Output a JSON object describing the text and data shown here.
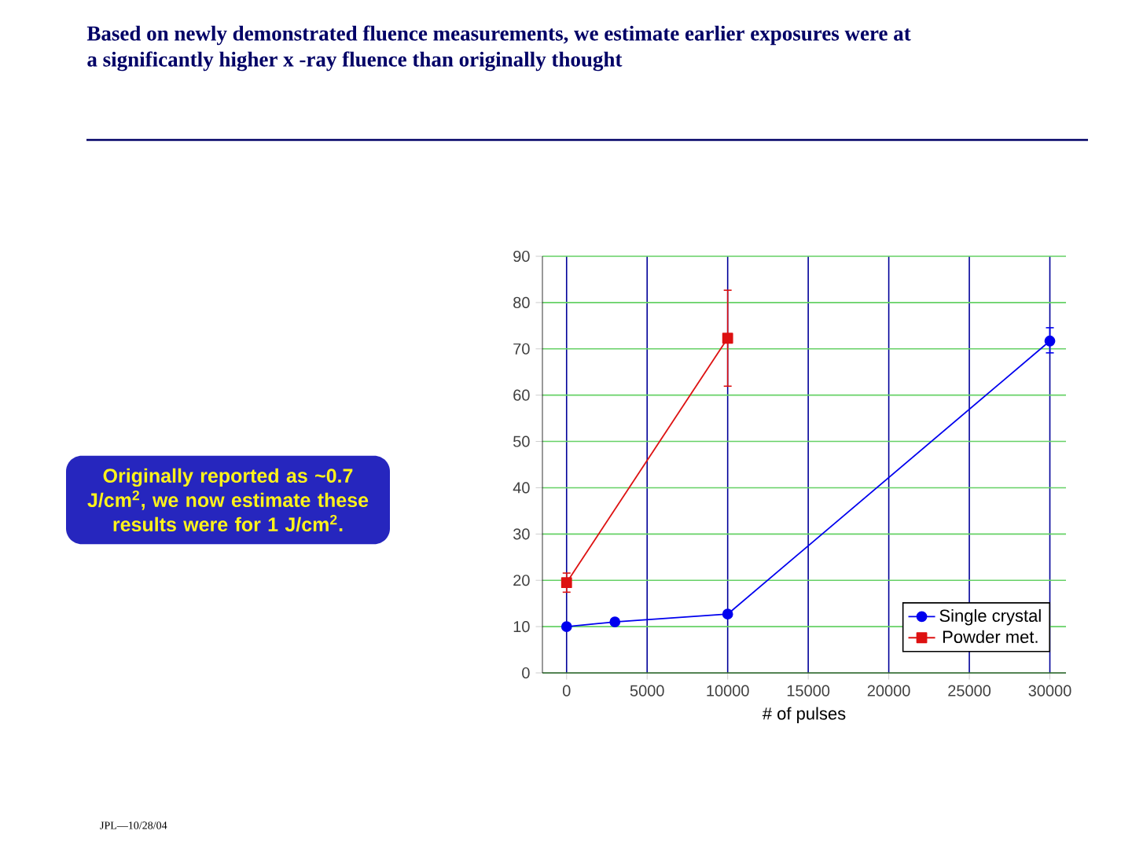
{
  "chart_data": {
    "type": "line",
    "title": "Based on newly demonstrated fluence measurements, we estimate earlier exposures were at a significantly higher x -ray fluence than originally thought",
    "xlabel": "# of pulses",
    "xlim": [
      -1500,
      31000
    ],
    "xticks": [
      0,
      5000,
      10000,
      15000,
      20000,
      25000,
      30000
    ],
    "ylim": [
      0,
      90
    ],
    "yticks": [
      0,
      10,
      20,
      30,
      40,
      50,
      60,
      70,
      80,
      90
    ],
    "grid": true,
    "legend": "bottom right",
    "series": [
      {
        "name": "Single crystal",
        "color": "#0000ee",
        "marker": "circle",
        "x": [
          0,
          3000,
          10000,
          30000
        ],
        "values": [
          10,
          11,
          12.7,
          71.7
        ],
        "errors": [
          null,
          null,
          null,
          [
            69,
            74.7
          ]
        ]
      },
      {
        "name": "Powder met.",
        "color": "#dd1111",
        "marker": "square",
        "x": [
          0,
          10000
        ],
        "values": [
          19.5,
          72.3
        ],
        "errors": [
          [
            17.3,
            21.7
          ],
          [
            61.8,
            82.8
          ]
        ]
      }
    ],
    "annotations": [
      "Originally reported as ~0.7 J/cm$^{2}$, we now estimate these results were for 1 J/cm$^{2}$.",
      "JPL—10/28/04"
    ]
  }
}
